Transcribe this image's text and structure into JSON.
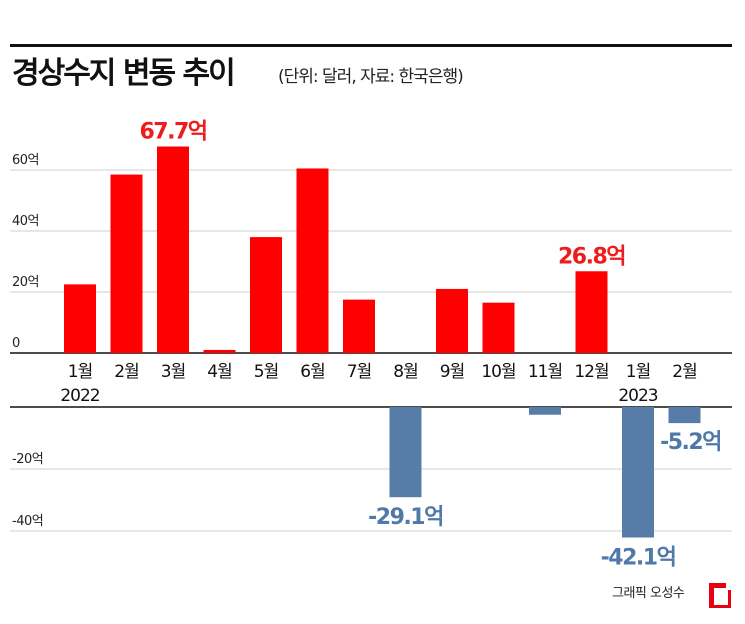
{
  "title": "경상수지 변동 추이",
  "subtitle": "(단위: 달러, 자료: 한국은행)",
  "credit": "그래픽 오성수",
  "colors": {
    "positive": "#ff0000",
    "negative": "#587ca8",
    "positive_label": "#ee1c1c",
    "negative_label": "#4f79a9",
    "axis": "#111111",
    "grid": "#cfcfcf"
  },
  "chart_data": {
    "type": "bar",
    "categories": [
      "1월",
      "2월",
      "3월",
      "4월",
      "5월",
      "6월",
      "7월",
      "8월",
      "9월",
      "10월",
      "11월",
      "12월",
      "1월",
      "2월"
    ],
    "years": [
      {
        "label": "2022",
        "category_index": 0
      },
      {
        "label": "2023",
        "category_index": 12
      }
    ],
    "values": [
      22.5,
      58.5,
      67.7,
      1.0,
      38.0,
      60.5,
      17.5,
      -29.1,
      21.0,
      16.5,
      -2.5,
      26.8,
      -42.1,
      -5.2
    ],
    "unit": "억",
    "ylim": [
      -45,
      70
    ],
    "yticks": [
      {
        "value": 60,
        "label": "60억"
      },
      {
        "value": 40,
        "label": "40억"
      },
      {
        "value": 20,
        "label": "20억"
      },
      {
        "value": 0,
        "label": "0"
      },
      {
        "value": -20,
        "label": "-20억"
      },
      {
        "value": -40,
        "label": "-40억"
      }
    ],
    "annotations": [
      {
        "index": 2,
        "text": "67.7억"
      },
      {
        "index": 11,
        "text": "26.8억"
      },
      {
        "index": 7,
        "text": "-29.1억"
      },
      {
        "index": 12,
        "text": "-42.1억"
      },
      {
        "index": 13,
        "text": "-5.2억"
      }
    ],
    "grid": true
  }
}
